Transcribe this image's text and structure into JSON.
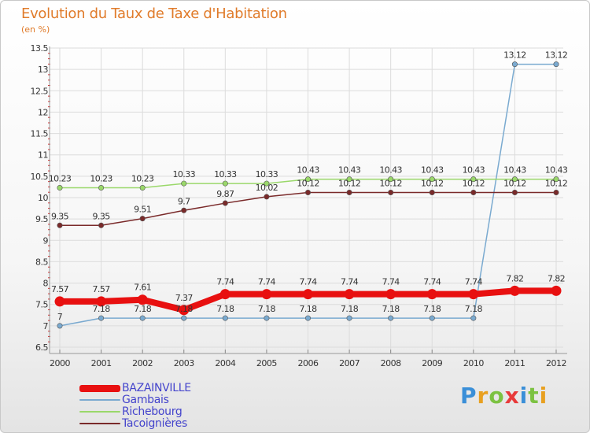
{
  "header": {
    "title": "Evolution du Taux de Taxe d'Habitation",
    "subtitle": "(en %)"
  },
  "logo": {
    "text": "Proxiti",
    "letter_colors": [
      "#3a8fd8",
      "#e8a020",
      "#7cc242",
      "#e83a3a",
      "#3a8fd8",
      "#7cc242",
      "#e8a020"
    ]
  },
  "colors": {
    "title": "#e07b2a",
    "axis_text": "#333333",
    "grid": "#dcdcdc",
    "tick_red": "#d03030",
    "legend_text": "#4444cc"
  },
  "chart_data": {
    "type": "line",
    "title": "Evolution du Taux de Taxe d'Habitation",
    "ylabel": "(en %)",
    "xlabel": "",
    "x": [
      "2000",
      "2001",
      "2002",
      "2003",
      "2004",
      "2005",
      "2006",
      "2007",
      "2008",
      "2009",
      "2010",
      "2011",
      "2012"
    ],
    "ylim": [
      6.5,
      13.5
    ],
    "yticks": [
      "6.5",
      "7",
      "7.5",
      "8",
      "8.5",
      "9",
      "9.5",
      "10",
      "10.5",
      "11",
      "11.5",
      "12",
      "12.5",
      "13",
      "13.5"
    ],
    "grid": true,
    "legend_position": "bottom-left",
    "series": [
      {
        "name": "BAZAINVILLE",
        "color": "#e81010",
        "values": [
          7.57,
          7.57,
          7.61,
          7.37,
          7.74,
          7.74,
          7.74,
          7.74,
          7.74,
          7.74,
          7.74,
          7.82,
          7.82
        ],
        "labels": [
          "7.57",
          "7.57",
          "7.61",
          "7.37",
          "7.74",
          "7.74",
          "7.74",
          "7.74",
          "7.74",
          "7.74",
          "7.74",
          "7.82",
          "7.82"
        ]
      },
      {
        "name": "Gambais",
        "color": "#7aaad0",
        "values": [
          7,
          7.18,
          7.18,
          7.18,
          7.18,
          7.18,
          7.18,
          7.18,
          7.18,
          7.18,
          7.18,
          13.12,
          13.12
        ],
        "labels": [
          "7",
          "7.18",
          "7.18",
          "7.18",
          "7.18",
          "7.18",
          "7.18",
          "7.18",
          "7.18",
          "7.18",
          "7.18",
          "13.12",
          "13.12"
        ]
      },
      {
        "name": "Richebourg",
        "color": "#9ad86a",
        "values": [
          10.23,
          10.23,
          10.23,
          10.33,
          10.33,
          10.33,
          10.43,
          10.43,
          10.43,
          10.43,
          10.43,
          10.43,
          10.43
        ],
        "labels": [
          "10.23",
          "10.23",
          "10.23",
          "10.33",
          "10.33",
          "10.33",
          "10.43",
          "10.43",
          "10.43",
          "10.43",
          "10.43",
          "10.43",
          "10.43"
        ]
      },
      {
        "name": "Tacoignières",
        "color": "#7a2a2a",
        "values": [
          9.35,
          9.35,
          9.51,
          9.7,
          9.87,
          10.02,
          10.12,
          10.12,
          10.12,
          10.12,
          10.12,
          10.12,
          10.12
        ],
        "labels": [
          "9.35",
          "9.35",
          "9.51",
          "9.7",
          "9.87",
          "10.02",
          "10.12",
          "10.12",
          "10.12",
          "10.12",
          "10.12",
          "10.12",
          "10.12"
        ]
      }
    ]
  }
}
